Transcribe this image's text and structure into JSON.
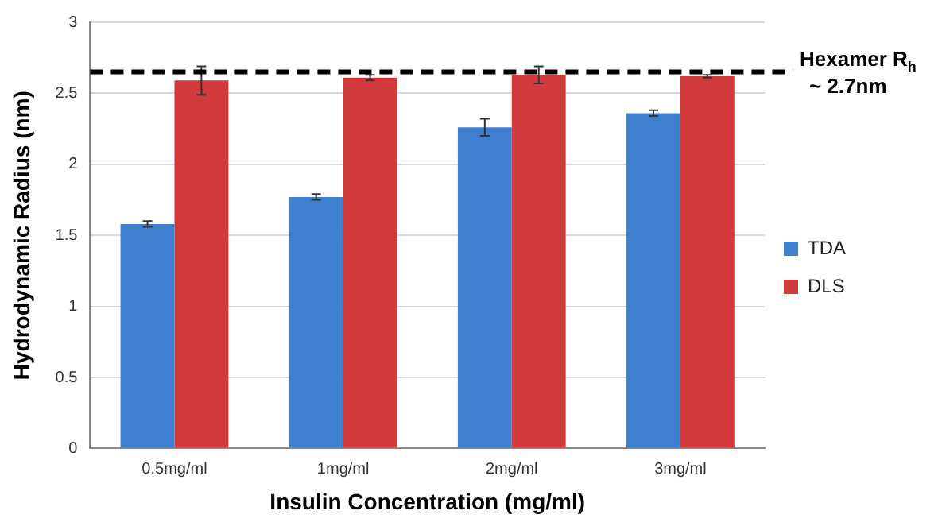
{
  "chart_data": {
    "type": "bar",
    "xlabel": "Insulin Concentration (mg/ml)",
    "ylabel": "Hydrodynamic Radius (nm)",
    "categories": [
      "0.5mg/ml",
      "1mg/ml",
      "2mg/ml",
      "3mg/ml"
    ],
    "series": [
      {
        "name": "TDA",
        "color": "#3f7fcf",
        "values": [
          1.58,
          1.77,
          2.26,
          2.36
        ],
        "errors": [
          0.02,
          0.02,
          0.06,
          0.02
        ]
      },
      {
        "name": "DLS",
        "color": "#d13b3b",
        "values": [
          2.59,
          2.61,
          2.63,
          2.62
        ],
        "errors": [
          0.1,
          0.02,
          0.06,
          0.01
        ]
      }
    ],
    "ylim": [
      0,
      3
    ],
    "yticks": [
      0,
      0.5,
      1,
      1.5,
      2,
      2.5,
      3
    ],
    "grid": "y",
    "legend": "right",
    "ref_lines": [
      {
        "axis": "y",
        "value": 2.65,
        "label": "Hexamer R$_{h}$ ~ 2.7nm",
        "color": "#000000",
        "line_style": "dashed"
      }
    ]
  }
}
